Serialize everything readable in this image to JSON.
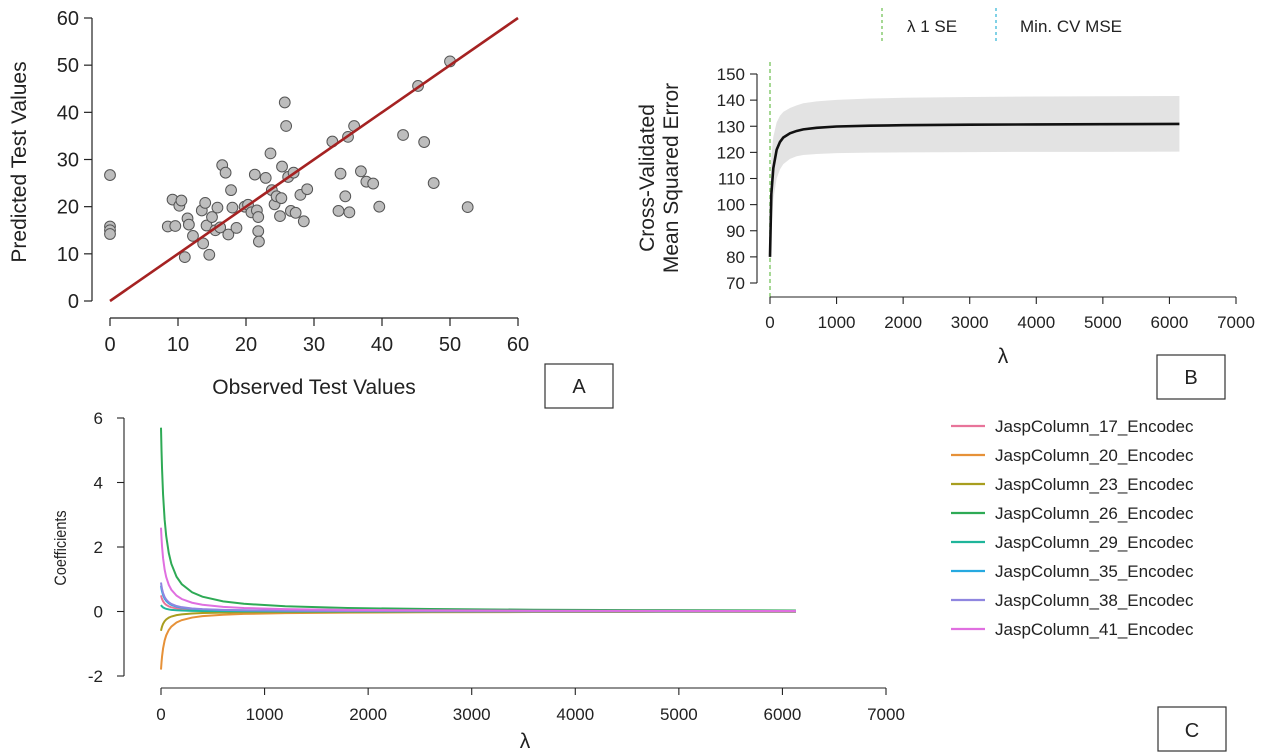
{
  "panel_labels": [
    "A",
    "B",
    "C"
  ],
  "chart_data": [
    {
      "panel": "A",
      "type": "scatter",
      "xlabel": "Observed Test Values",
      "ylabel": "Predicted Test Values",
      "xlim": [
        0,
        60
      ],
      "ylim": [
        0,
        60
      ],
      "xticks": [
        0,
        10,
        20,
        30,
        40,
        50,
        60
      ],
      "yticks": [
        0,
        10,
        20,
        30,
        40,
        50,
        60
      ],
      "reference_line": {
        "from": [
          0,
          0
        ],
        "to": [
          60,
          60
        ],
        "color": "#a52222"
      },
      "point_color": "#bdbdbd",
      "points": [
        [
          0,
          26.7
        ],
        [
          0,
          15.8
        ],
        [
          0,
          15.0
        ],
        [
          0,
          14.2
        ],
        [
          8.5,
          15.8
        ],
        [
          9.2,
          21.5
        ],
        [
          9.6,
          15.9
        ],
        [
          10.2,
          20.2
        ],
        [
          10.5,
          21.3
        ],
        [
          11.0,
          9.3
        ],
        [
          11.4,
          17.5
        ],
        [
          11.6,
          16.2
        ],
        [
          12.2,
          13.8
        ],
        [
          13.5,
          19.2
        ],
        [
          13.7,
          12.2
        ],
        [
          14.0,
          20.8
        ],
        [
          14.2,
          16.0
        ],
        [
          14.6,
          9.8
        ],
        [
          15.0,
          17.8
        ],
        [
          15.5,
          15.0
        ],
        [
          15.8,
          19.8
        ],
        [
          16.2,
          15.6
        ],
        [
          16.5,
          28.8
        ],
        [
          17.0,
          27.2
        ],
        [
          17.4,
          14.1
        ],
        [
          17.8,
          23.5
        ],
        [
          18.0,
          19.8
        ],
        [
          18.6,
          15.5
        ],
        [
          19.8,
          20.0
        ],
        [
          20.3,
          20.4
        ],
        [
          20.8,
          18.8
        ],
        [
          21.3,
          26.8
        ],
        [
          21.6,
          19.2
        ],
        [
          21.8,
          17.8
        ],
        [
          21.8,
          14.8
        ],
        [
          21.9,
          12.6
        ],
        [
          22.9,
          26.1
        ],
        [
          23.6,
          31.3
        ],
        [
          23.8,
          23.5
        ],
        [
          24.2,
          20.5
        ],
        [
          24.5,
          22.2
        ],
        [
          25.0,
          18.0
        ],
        [
          25.2,
          21.8
        ],
        [
          25.3,
          28.5
        ],
        [
          25.7,
          42.1
        ],
        [
          25.9,
          37.1
        ],
        [
          26.2,
          26.3
        ],
        [
          26.6,
          19.1
        ],
        [
          27.0,
          27.2
        ],
        [
          27.3,
          18.7
        ],
        [
          28.0,
          22.5
        ],
        [
          28.5,
          16.9
        ],
        [
          29.0,
          23.7
        ],
        [
          32.7,
          33.8
        ],
        [
          33.6,
          19.1
        ],
        [
          33.9,
          27.0
        ],
        [
          34.6,
          22.2
        ],
        [
          35.0,
          34.8
        ],
        [
          35.2,
          18.8
        ],
        [
          35.9,
          37.1
        ],
        [
          36.9,
          27.5
        ],
        [
          37.7,
          25.3
        ],
        [
          38.7,
          24.9
        ],
        [
          39.6,
          20.0
        ],
        [
          43.1,
          35.2
        ],
        [
          45.3,
          45.6
        ],
        [
          46.2,
          33.7
        ],
        [
          47.6,
          25.0
        ],
        [
          50.0,
          50.8
        ],
        [
          52.6,
          19.9
        ]
      ]
    },
    {
      "panel": "B",
      "type": "line",
      "xlabel": "λ",
      "ylabel_lines": [
        "Cross-Validated",
        "Mean Squared Error"
      ],
      "xlim": [
        0,
        7000
      ],
      "ylim": [
        70,
        150
      ],
      "xticks": [
        0,
        1000,
        2000,
        3000,
        4000,
        5000,
        6000,
        7000
      ],
      "yticks": [
        70,
        80,
        90,
        100,
        110,
        120,
        130,
        140,
        150
      ],
      "legend": [
        {
          "label": "λ 1 SE",
          "color": "#8fcf7a",
          "style": "dashed"
        },
        {
          "label": "Min. CV MSE",
          "color": "#62c6e0",
          "style": "dashed"
        }
      ],
      "vline_x": 0,
      "band_color": "#e3e3e3",
      "line_color": "#111111",
      "curve": {
        "x": [
          0,
          20,
          50,
          100,
          150,
          200,
          300,
          400,
          500,
          700,
          1000,
          1500,
          2000,
          3000,
          4000,
          5000,
          6150
        ],
        "y": [
          80,
          104,
          114,
          121,
          124,
          125.7,
          127.3,
          128.2,
          128.8,
          129.4,
          129.9,
          130.2,
          130.4,
          130.6,
          130.7,
          130.8,
          130.9
        ],
        "upper": [
          90,
          118,
          126,
          131.5,
          134,
          135.5,
          137,
          138,
          138.8,
          139.5,
          140.1,
          140.6,
          140.9,
          141.2,
          141.4,
          141.5,
          141.6
        ],
        "lower": [
          70,
          90,
          102,
          110,
          113.5,
          115.5,
          117.5,
          118.5,
          119.0,
          119.4,
          119.7,
          119.9,
          120.0,
          120.1,
          120.2,
          120.2,
          120.3
        ]
      }
    },
    {
      "panel": "C",
      "type": "line",
      "xlabel": "λ",
      "ylabel": "Coefficients",
      "xlim": [
        0,
        7000
      ],
      "ylim": [
        -2,
        6
      ],
      "xticks": [
        0,
        1000,
        2000,
        3000,
        4000,
        5000,
        6000,
        7000
      ],
      "yticks": [
        -2,
        0,
        2,
        4,
        6
      ],
      "x_max": 6130,
      "series": [
        {
          "name": "JaspColumn_17_Encodec",
          "color": "#e8749a",
          "start": 0.5
        },
        {
          "name": "JaspColumn_20_Encodec",
          "color": "#e69138",
          "start": -1.8
        },
        {
          "name": "JaspColumn_23_Encodec",
          "color": "#a89e1f",
          "start": -0.6
        },
        {
          "name": "JaspColumn_26_Encodec",
          "color": "#2eaa55",
          "start": 5.7
        },
        {
          "name": "JaspColumn_29_Encodec",
          "color": "#1fb59a",
          "start": 0.2
        },
        {
          "name": "JaspColumn_35_Encodec",
          "color": "#26a9e0",
          "start": 0.8
        },
        {
          "name": "JaspColumn_38_Encodec",
          "color": "#8f86e0",
          "start": 0.9
        },
        {
          "name": "JaspColumn_41_Encodec",
          "color": "#e06fe0",
          "start": 2.6
        }
      ]
    }
  ]
}
